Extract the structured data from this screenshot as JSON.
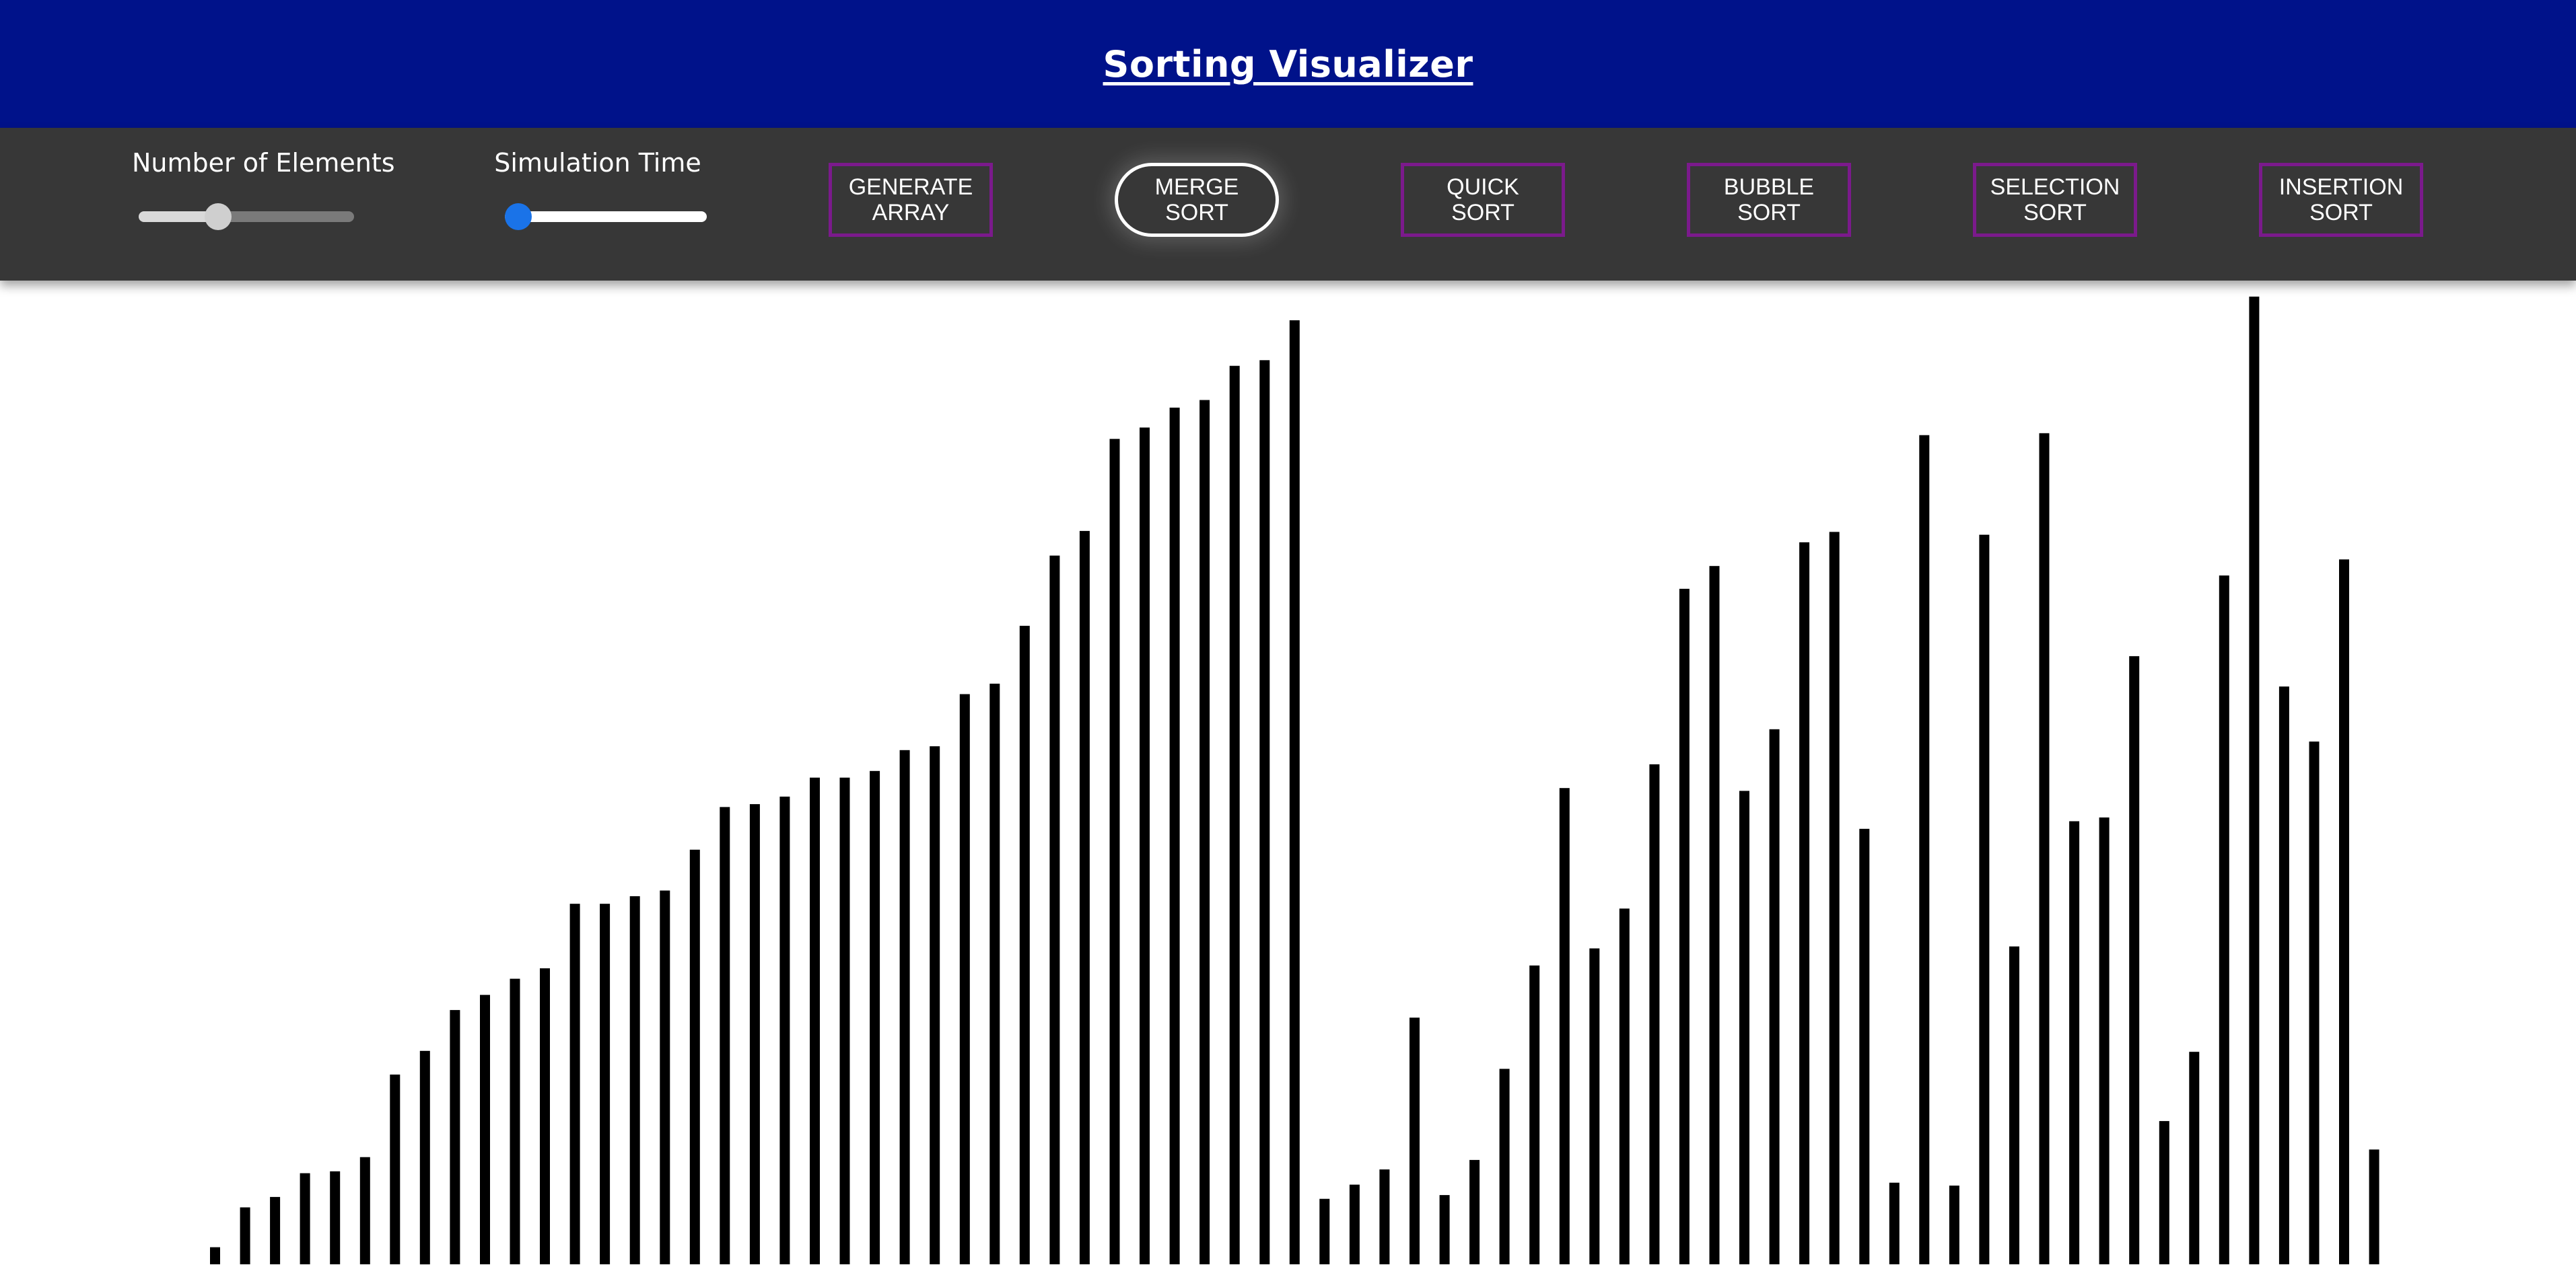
{
  "header": {
    "title": "Sorting Visualizer",
    "background_color": "#00128a"
  },
  "toolbar": {
    "background_color": "#373737",
    "sliders": [
      {
        "name": "number-of-elements",
        "label": "Number of Elements",
        "value_fraction": 0.37,
        "track_color": "#7a7a7a",
        "fill_color": "#d9d9d9",
        "thumb_color": "#cfcfcf"
      },
      {
        "name": "simulation-time",
        "label": "Simulation Time",
        "value_fraction": 0.0,
        "track_color": "#ffffff",
        "fill_color": "#ffffff",
        "thumb_color": "#1a73e8"
      }
    ],
    "buttons": [
      {
        "name": "generate-array-button",
        "label": "GENERATE\nARRAY",
        "active": false
      },
      {
        "name": "merge-sort-button",
        "label": "MERGE\nSORT",
        "active": true
      },
      {
        "name": "quick-sort-button",
        "label": "QUICK\nSORT",
        "active": false
      },
      {
        "name": "bubble-sort-button",
        "label": "BUBBLE\nSORT",
        "active": false
      },
      {
        "name": "selection-sort-button",
        "label": "SELECTION\nSORT",
        "active": false
      },
      {
        "name": "insertion-sort-button",
        "label": "INSERTION\nSORT",
        "active": false
      }
    ],
    "button_border_color": "#7b1a8c",
    "active_button_border_color": "#ffffff"
  },
  "chart_data": {
    "type": "bar",
    "bar_color": "#000000",
    "ylim": [
      0,
      100
    ],
    "values": [
      1.8,
      6.0,
      7.1,
      9.6,
      9.8,
      11.3,
      20.0,
      22.5,
      26.8,
      28.4,
      30.1,
      31.2,
      38.0,
      38.0,
      38.8,
      39.4,
      43.7,
      48.2,
      48.5,
      49.3,
      51.3,
      51.3,
      52.0,
      54.2,
      54.6,
      60.1,
      61.2,
      67.3,
      74.7,
      77.3,
      87.0,
      88.2,
      90.3,
      91.1,
      94.7,
      95.3,
      99.5,
      6.9,
      8.4,
      10.0,
      26.0,
      7.3,
      11.0,
      20.6,
      31.5,
      50.2,
      33.3,
      37.5,
      52.7,
      71.2,
      73.6,
      49.9,
      56.4,
      76.1,
      77.2,
      45.9,
      8.6,
      87.4,
      8.3,
      76.9,
      33.5,
      87.6,
      46.7,
      47.1,
      64.1,
      15.1,
      22.4,
      72.6,
      102.0,
      60.9,
      55.1,
      74.3,
      12.1
    ]
  }
}
